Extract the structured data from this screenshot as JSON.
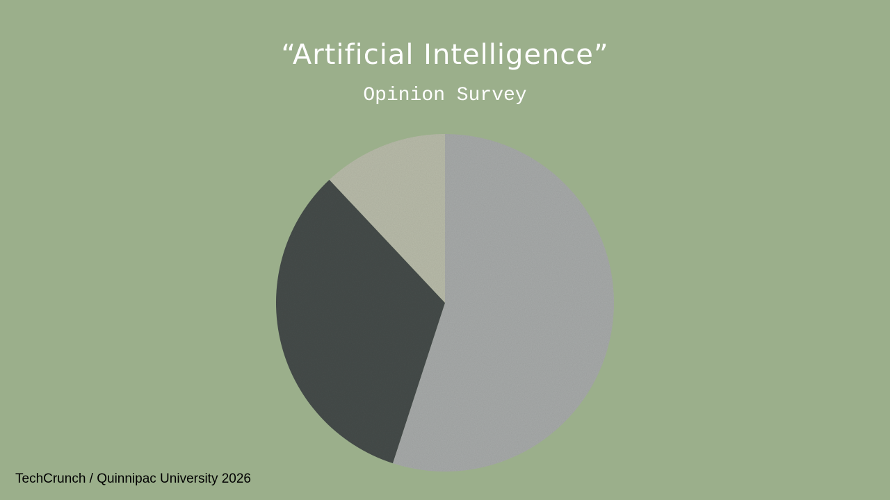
{
  "chart_data": {
    "type": "pie",
    "title": "“Artificial Intelligence”",
    "subtitle": "Opinion Survey",
    "source": "TechCrunch / Quinnipac University 2026",
    "values": [
      55,
      33,
      12
    ],
    "colors": [
      "#a8abaa",
      "#474d4b",
      "#b9bcaa"
    ]
  }
}
